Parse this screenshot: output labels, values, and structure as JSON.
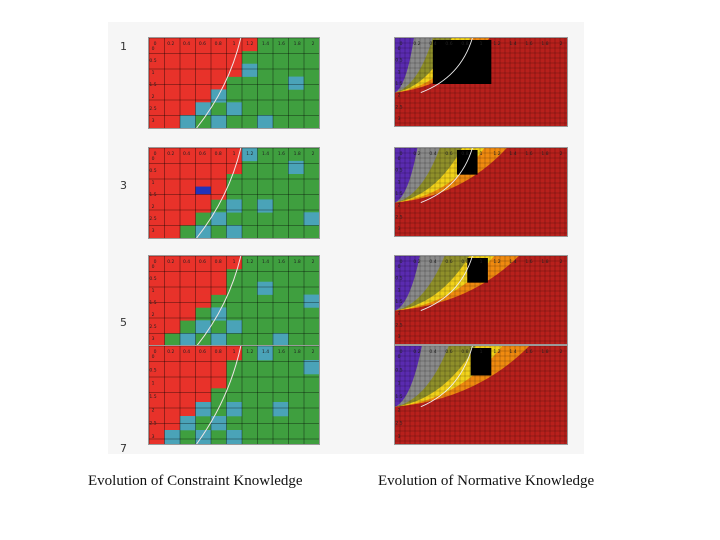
{
  "captions": {
    "left": "Evolution of Constraint Knowledge",
    "right": "Evolution of Normative Knowledge"
  },
  "row_numbers": [
    "1",
    "3",
    "5",
    "7"
  ],
  "x_ticks": [
    "0",
    "0.2",
    "0.4",
    "0.6",
    "0.8",
    "1",
    "1.2",
    "1.4",
    "1.6",
    "1.8",
    "2"
  ],
  "y_ticks": [
    "0",
    "0.5",
    "1",
    "1.5",
    "2",
    "2.5",
    "3"
  ],
  "colors": {
    "constraint_red": "#e8322a",
    "constraint_green": "#3f9f3f",
    "constraint_cyan": "#4aa3b8",
    "constraint_blue": "#2233bb",
    "normative_red": "#b8201c",
    "black": "#000000",
    "purple": "#5a2bb0",
    "gray": "#8a8a8a",
    "olive": "#8f8f2a",
    "yellow": "#f2d21a",
    "orange": "#f08a10"
  }
}
